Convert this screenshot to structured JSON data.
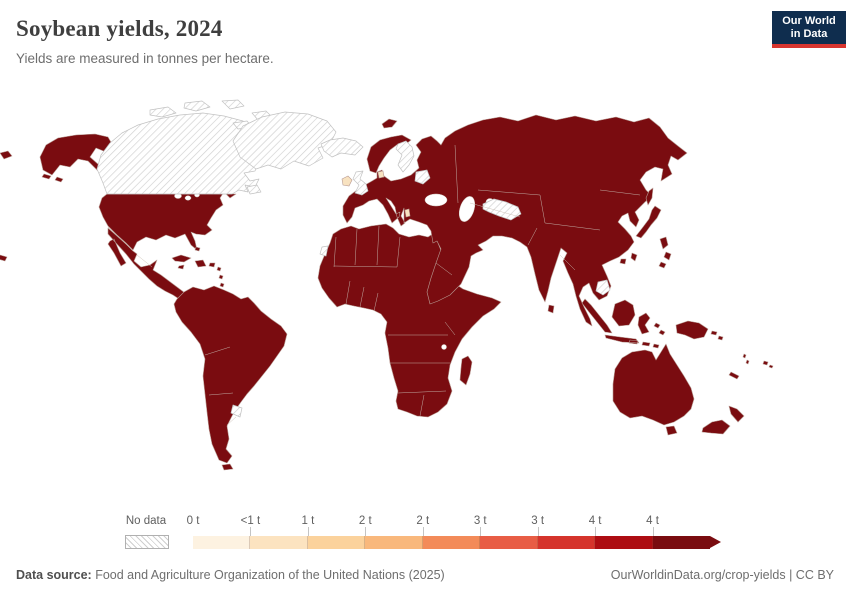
{
  "header": {
    "title": "Soybean yields, 2024",
    "subtitle": "Yields are measured in tonnes per hectare."
  },
  "logo": {
    "line1": "Our World",
    "line2": "in Data",
    "bg_color": "#0f2d4e",
    "accent_color": "#d8352f"
  },
  "legend": {
    "no_data_label": "No data",
    "bucket_labels": [
      "0 t",
      "<1 t",
      "1 t",
      "2 t",
      "2 t",
      "3 t",
      "3 t",
      "4 t",
      "4 t"
    ],
    "bucket_colors": [
      "#fdf2e1",
      "#fce3c0",
      "#fbd29c",
      "#f9b87c",
      "#f38b59",
      "#e85d45",
      "#d5342c",
      "#ad0d12",
      "#7a0c10"
    ]
  },
  "map": {
    "ocean_color": "#ffffff",
    "land_color": "#7a0c10",
    "low_value_color": "#f8e2c0",
    "land_border_color": "#b89a92",
    "hatch_line_color": "#cfcfcf",
    "hatch_border_color": "#c2c2c2",
    "internal_border_color": "#c9beb4"
  },
  "footer": {
    "source_label": "Data source:",
    "source_text": " Food and Agriculture Organization of the United Nations (2025)",
    "attribution": "OurWorldinData.org/crop-yields | CC BY"
  },
  "chart_data": {
    "type": "choropleth",
    "title": "Soybean yields, 2024",
    "subtitle": "Yields are measured in tonnes per hectare.",
    "unit": "tonnes per hectare",
    "year": 2024,
    "legend_scale": {
      "no_data": "No data",
      "bucket_labels": [
        "0 t",
        "<1 t",
        "1 t",
        "2 t",
        "2 t",
        "3 t",
        "3 t",
        "4 t",
        "4 t"
      ],
      "bucket_colors": [
        "#fdf2e1",
        "#fce3c0",
        "#fbd29c",
        "#f9b87c",
        "#f38b59",
        "#e85d45",
        "#d5342c",
        "#ad0d12",
        "#7a0c10"
      ]
    },
    "observed_regions": {
      "no_data_hatched": [
        "Canada",
        "Greenland",
        "Iceland",
        "United Kingdom",
        "Sweden",
        "Belarus",
        "Turkmenistan",
        "Uzbekistan",
        "Cambodia",
        "Uruguay",
        "Western Sahara"
      ],
      "lowest_bucket_cream": [
        "Ireland",
        "Denmark",
        "Albania"
      ],
      "darkest_bucket": "Nearly all other countries are shown in the darkest (highest, 4 t+) color"
    }
  }
}
